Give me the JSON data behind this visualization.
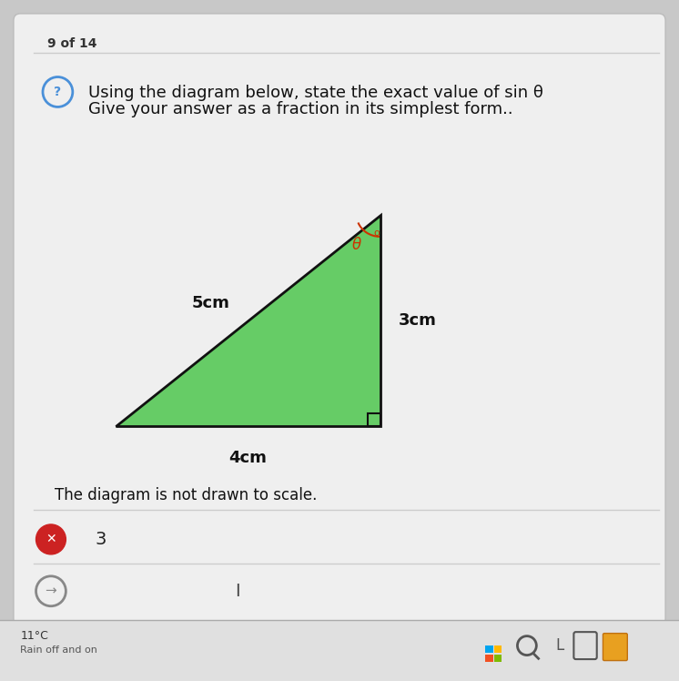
{
  "bg_color": "#c8c8c8",
  "card_color": "#efefef",
  "page_indicator": "9 of 14",
  "question_line1": "Using the diagram below, state the exact value of sin θ",
  "question_line2": "Give your answer as a fraction in its simplest form..",
  "tri_fill": "#66cc66",
  "tri_edge": "#111111",
  "label_hyp": "5cm",
  "label_base": "4cm",
  "label_vert": "3cm",
  "not_to_scale": "The diagram is not drawn to scale.",
  "answer_wrong_text": "3",
  "answer_input_cursor": "I",
  "bottom_left_text1": "11°C",
  "bottom_left_text2": "Rain off and on"
}
